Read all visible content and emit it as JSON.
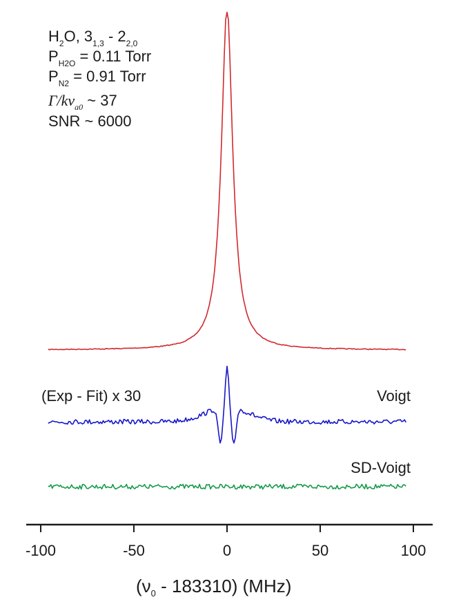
{
  "chart_data": {
    "type": "line",
    "xlabel_parts": {
      "open": "(ν",
      "sub": "0",
      "rest": " - 183310) (MHz)"
    },
    "xlim": [
      -100,
      100
    ],
    "xticks": [
      "-100",
      "-50",
      "0",
      "50",
      "100"
    ],
    "xtick_values": [
      -100,
      -50,
      0,
      50,
      100
    ],
    "annotation_lines": [
      {
        "id": "species",
        "parts": [
          "H",
          "2",
          "O, 3",
          "1,3",
          " - 2",
          "2,0"
        ]
      },
      {
        "id": "p_h2o",
        "parts": [
          "P",
          "H2O",
          " = 0.11 Torr"
        ]
      },
      {
        "id": "p_n2",
        "parts": [
          "P",
          "N2",
          " = 0.91 Torr"
        ]
      },
      {
        "id": "ratio",
        "parts": [
          "Γ/kv",
          "a0",
          " ~ 37"
        ]
      },
      {
        "id": "snr",
        "text": "SNR ~ 6000"
      }
    ],
    "residual_label": "(Exp - Fit) x 30",
    "series": [
      {
        "id": "spectrum",
        "color": "#d0282e",
        "gamma": 4.0,
        "x": [
          -96,
          96
        ]
      },
      {
        "id": "voigt-residual",
        "name": "Voigt",
        "color": "#1616c8",
        "x": [
          -96,
          96
        ]
      },
      {
        "id": "sd-voigt-residual",
        "name": "SD-Voigt",
        "color": "#159a4a",
        "x": [
          -96,
          96
        ]
      }
    ]
  }
}
